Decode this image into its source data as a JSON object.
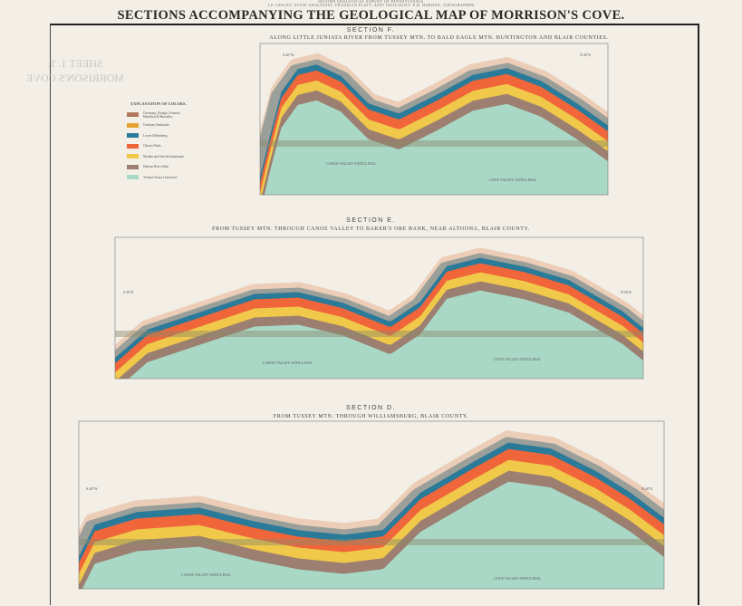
{
  "header": {
    "survey": "SECOND GEOLOGICAL SURVEY OF PENNSYLVANIA",
    "staff": "J.P. LESLEY, STATE GEOLOGIST. FRANKLIN PLATT, ASST GEOLOGIST. E.B. HARDEN, TOPOGRAPHER",
    "title": "SECTIONS ACCOMPANYING THE GEOLOGICAL MAP OF MORRISON'S COVE."
  },
  "watermark": {
    "line1": "SHEET 1. T.",
    "line2": "MORRISON'S COVE"
  },
  "legend": {
    "title": "EXPLANATION OF COLORS.",
    "items": [
      {
        "label": "Chemung, Portage, Genesee, Hamilton & Marcellus",
        "color": "#b07a5a"
      },
      {
        "label": "Oriskany Sandstone",
        "color": "#e8a432"
      },
      {
        "label": "Lower Helderberg",
        "color": "#2a7a9a"
      },
      {
        "label": "Clinton Shale",
        "color": "#f0653a"
      },
      {
        "label": "Medina and Oneida Sandstones",
        "color": "#f0c84a"
      },
      {
        "label": "Hudson River Slate",
        "color": "#9c7f70"
      },
      {
        "label": "Trenton Chazy Limestone",
        "color": "#a9d8c6"
      }
    ]
  },
  "sections": [
    {
      "heading": "SECTION F.",
      "subtitle": "ALONG LITTLE JUNIATA RIVER FROM TUSSEY MTN. TO BALD EAGLE MTN. HUNTINGTON AND BLAIR COUNTIES.",
      "left_dir": "S.40°W.",
      "right_dir": "N.40°E.",
      "core_label_1": "CANOE VALLEY ANTICLINAL",
      "core_label_2": "COVE VALLEY ANTICLINAL"
    },
    {
      "heading": "SECTION E.",
      "subtitle": "FROM TUSSEY MTN. THROUGH CANOE VALLEY TO BAKER'S ORE BANK, NEAR ALTOONA, BLAIR COUNTY.",
      "left_dir": "S.50°E.",
      "right_dir": "N.50°E.",
      "core_label_1": "CANOE VALLEY ANTICLINAL",
      "core_label_2": "COVE VALLEY ANTICLINAL"
    },
    {
      "heading": "SECTION D.",
      "subtitle": "FROM TUSSEY MTN. THROUGH WILLIAMSBURG, BLAIR COUNTY.",
      "left_dir": "S.40°W.",
      "right_dir": "N.40°E.",
      "core_label_1": "CANOE VALLEY ANTICLINAL",
      "core_label_2": "COVE VALLEY ANTICLINAL"
    }
  ],
  "colors": {
    "teal": "#2a7a9a",
    "orange": "#f0653a",
    "yellow": "#f0c84a",
    "brown": "#9c7f70",
    "green": "#a9d8c6",
    "halo": "#e8b89a",
    "ground": "#8c8a6a"
  }
}
